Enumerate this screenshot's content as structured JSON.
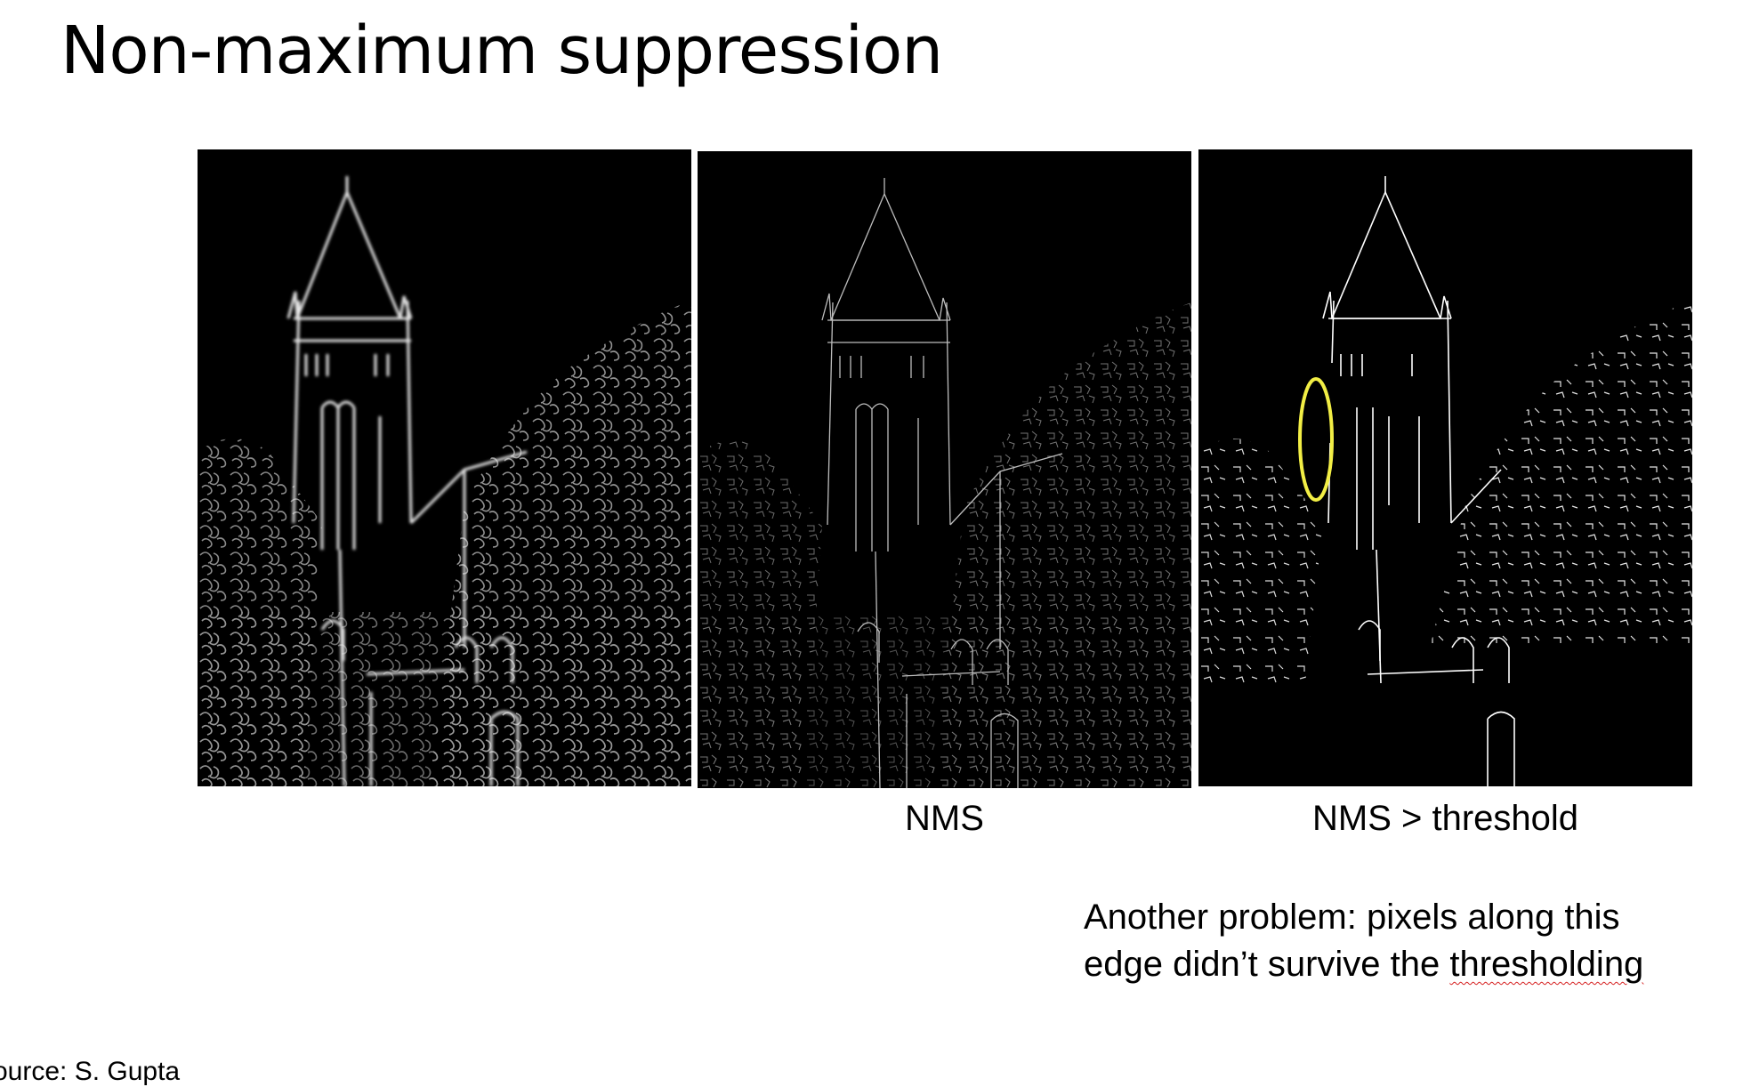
{
  "slide": {
    "title": "Non-maximum suppression"
  },
  "panels": {
    "gradient": {
      "caption": ""
    },
    "nms": {
      "caption": "NMS"
    },
    "threshold": {
      "caption": "NMS > threshold",
      "highlight_color": "#f2ee45"
    }
  },
  "note": {
    "line1": "Another problem: pixels along this",
    "line2_prefix": "edge didn’t survive the ",
    "line2_word": "thresholding"
  },
  "source": {
    "text": "ource: S. Gupta"
  },
  "colors": {
    "background": "#ffffff",
    "panel_background": "#000000",
    "spellcheck_underline": "#d62020"
  }
}
